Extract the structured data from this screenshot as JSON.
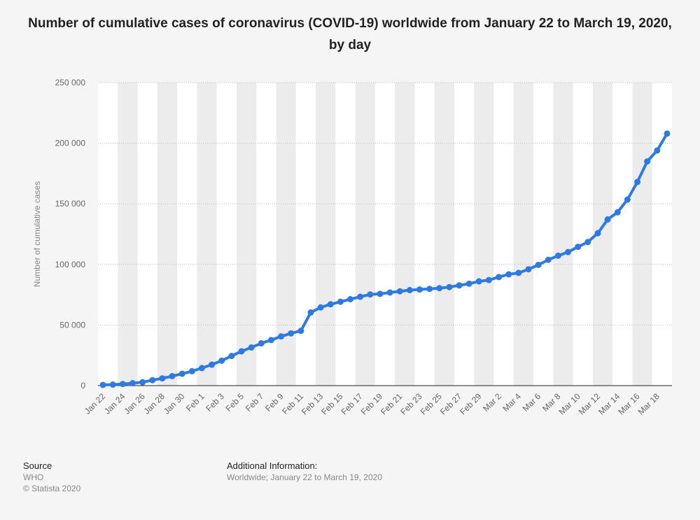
{
  "title": "Number of cumulative cases of coronavirus (COVID-19) worldwide from January 22 to March 19, 2020, by day",
  "footer": {
    "source_label": "Source",
    "source_name": "WHO",
    "copyright": "© Statista 2020",
    "additional_label": "Additional Information:",
    "additional_text": "Worldwide; January 22 to March 19, 2020"
  },
  "chart_data": {
    "type": "line",
    "ylabel": "Number of cumulative cases",
    "xlabel": "",
    "ylim": [
      0,
      250000
    ],
    "yticks": [
      0,
      50000,
      100000,
      150000,
      200000,
      250000
    ],
    "ytick_labels": [
      "0",
      "50 000",
      "100 000",
      "150 000",
      "200 000",
      "250 000"
    ],
    "grid": true,
    "line_color": "#2d7be0",
    "x": [
      "Jan 22",
      "Jan 23",
      "Jan 24",
      "Jan 25",
      "Jan 26",
      "Jan 27",
      "Jan 28",
      "Jan 29",
      "Jan 30",
      "Jan 31",
      "Feb 1",
      "Feb 2",
      "Feb 3",
      "Feb 4",
      "Feb 5",
      "Feb 6",
      "Feb 7",
      "Feb 8",
      "Feb 9",
      "Feb 10",
      "Feb 11",
      "Feb 12",
      "Feb 13",
      "Feb 14",
      "Feb 15",
      "Feb 16",
      "Feb 17",
      "Feb 18",
      "Feb 19",
      "Feb 20",
      "Feb 21",
      "Feb 22",
      "Feb 23",
      "Feb 24",
      "Feb 25",
      "Feb 26",
      "Feb 27",
      "Feb 28",
      "Feb 29",
      "Mar 1",
      "Mar 2",
      "Mar 3",
      "Mar 4",
      "Mar 5",
      "Mar 6",
      "Mar 7",
      "Mar 8",
      "Mar 9",
      "Mar 10",
      "Mar 11",
      "Mar 12",
      "Mar 13",
      "Mar 14",
      "Mar 15",
      "Mar 16",
      "Mar 17",
      "Mar 18",
      "Mar 19"
    ],
    "x_tick_labels": [
      "Jan 22",
      "Jan 24",
      "Jan 26",
      "Jan 28",
      "Jan 30",
      "Feb 1",
      "Feb 3",
      "Feb 5",
      "Feb 7",
      "Feb 9",
      "Feb 11",
      "Feb 13",
      "Feb 15",
      "Feb 17",
      "Feb 19",
      "Feb 21",
      "Feb 23",
      "Feb 25",
      "Feb 27",
      "Feb 29",
      "Mar 2",
      "Mar 4",
      "Mar 6",
      "Mar 8",
      "Mar 10",
      "Mar 12",
      "Mar 14",
      "Mar 16",
      "Mar 18"
    ],
    "series": [
      {
        "name": "",
        "values": [
          580,
          850,
          1300,
          2000,
          2800,
          4500,
          6000,
          7800,
          9800,
          11900,
          14500,
          17300,
          20600,
          24500,
          28300,
          31500,
          34900,
          37600,
          40600,
          43100,
          45200,
          60400,
          64500,
          67100,
          69200,
          71300,
          73300,
          75200,
          75700,
          76800,
          77800,
          78800,
          79300,
          79800,
          80400,
          81300,
          82700,
          84100,
          86000,
          87100,
          89600,
          91800,
          93000,
          96000,
          99600,
          103800,
          107200,
          110200,
          114500,
          118500,
          125700,
          137100,
          143000,
          153500,
          168000,
          185000,
          194000,
          207900
        ]
      }
    ]
  }
}
